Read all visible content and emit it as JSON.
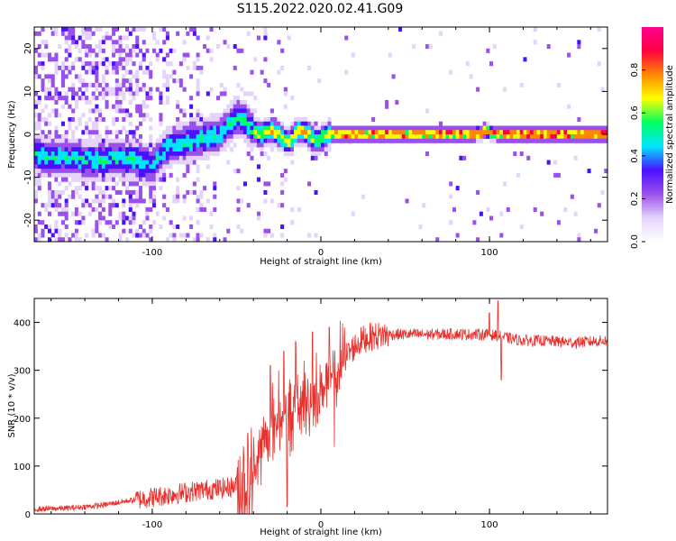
{
  "title": "S115.2022.020.02.41.G09",
  "colors": {
    "snr_line": "#e8302c",
    "colormap": [
      "#ffffff",
      "#e4d4fb",
      "#9a50ea",
      "#4a10ff",
      "#00e5ff",
      "#00ff60",
      "#ffff00",
      "#ff8800",
      "#ff0040",
      "#ff0090"
    ]
  },
  "chart_data": [
    {
      "type": "heatmap",
      "title": "",
      "xlabel": "Height of straight line (km)",
      "ylabel": "Frequency (Hz)",
      "xlim": [
        -170,
        170
      ],
      "ylim": [
        -25,
        25
      ],
      "xticks": [
        -100,
        0,
        100
      ],
      "yticks": [
        -20,
        -10,
        0,
        10,
        20
      ],
      "ridge_x": [
        -170,
        -150,
        -140,
        -130,
        -120,
        -110,
        -100,
        -95,
        -90,
        -80,
        -70,
        -60,
        -55,
        -50,
        -45,
        -40,
        -35,
        -30,
        -25,
        -22,
        -20,
        -18,
        -15,
        -12,
        -10,
        -7,
        -5,
        -2,
        0,
        5,
        10,
        20,
        90,
        95,
        97,
        100,
        105,
        170
      ],
      "ridge_hz": [
        -5,
        -5.5,
        -6,
        -6,
        -5.5,
        -6,
        -7,
        -5,
        -3,
        -2,
        -1,
        0,
        2,
        4,
        3,
        1,
        0,
        1,
        0,
        -1,
        -2,
        -1.5,
        0,
        1,
        0.5,
        0,
        -1,
        -1.5,
        -1,
        0,
        0,
        0,
        0,
        0.2,
        1,
        0.5,
        0,
        0
      ],
      "colorbar": {
        "label": "Normalized spectral amplitude",
        "range": [
          0,
          1
        ],
        "ticks": [
          "0.0",
          "0.2",
          "0.4",
          "0.6",
          "0.8"
        ]
      }
    },
    {
      "type": "line",
      "title": "",
      "xlabel": "Height of straight line (km)",
      "ylabel": "SNR (10 * v/v)",
      "xlim": [
        -170,
        170
      ],
      "ylim": [
        0,
        450
      ],
      "xticks": [
        -100,
        0,
        100
      ],
      "yticks": [
        0,
        100,
        200,
        300,
        400
      ],
      "series": [
        {
          "trend_x": [
            -170,
            -150,
            -130,
            -110,
            -90,
            -70,
            -55,
            -45,
            -40,
            -35,
            -30,
            -25,
            -20,
            -15,
            -10,
            -5,
            0,
            5,
            10,
            15,
            20,
            25,
            30,
            40,
            50,
            60,
            70,
            80,
            90,
            100,
            110,
            120,
            130,
            140,
            150,
            160,
            170
          ],
          "trend_y": [
            10,
            12,
            18,
            30,
            40,
            50,
            55,
            65,
            90,
            140,
            180,
            200,
            210,
            215,
            225,
            240,
            260,
            280,
            300,
            330,
            350,
            365,
            370,
            375,
            375,
            375,
            375,
            376,
            375,
            375,
            368,
            362,
            362,
            360,
            358,
            360,
            362
          ],
          "spikes": [
            {
              "x": -30,
              "y": 310
            },
            {
              "x": -25,
              "y": 300
            },
            {
              "x": -22,
              "y": 340
            },
            {
              "x": -20,
              "y": 15
            },
            {
              "x": -15,
              "y": 360
            },
            {
              "x": -10,
              "y": 320
            },
            {
              "x": -5,
              "y": 380
            },
            {
              "x": 5,
              "y": 390
            },
            {
              "x": 8,
              "y": 140
            },
            {
              "x": 100,
              "y": 420
            },
            {
              "x": 105,
              "y": 445
            },
            {
              "x": 107,
              "y": 280
            }
          ]
        }
      ]
    }
  ]
}
